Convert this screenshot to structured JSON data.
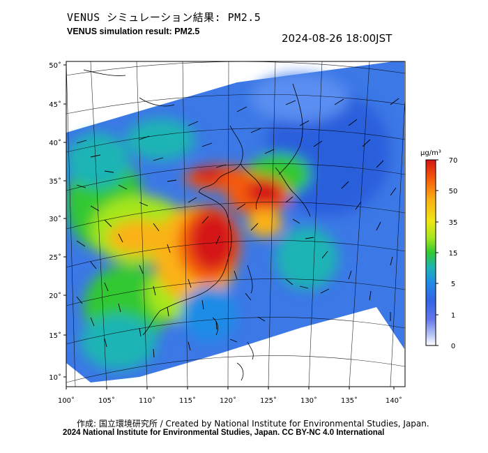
{
  "title_jp": "VENUS シミュレーション結果: PM2.5",
  "title_en": "VENUS simulation result: PM2.5",
  "timestamp": "2024-08-26 18:00JST",
  "lat_ticks": [
    "50˚",
    "45˚",
    "40˚",
    "35˚",
    "30˚",
    "25˚",
    "20˚",
    "15˚",
    "10˚"
  ],
  "lon_ticks": [
    "100˚",
    "105˚",
    "110˚",
    "115˚",
    "120˚",
    "125˚",
    "130˚",
    "135˚",
    "140˚"
  ],
  "colorbar": {
    "unit": "µg/m³",
    "labels": [
      "70",
      "50",
      "35",
      "15",
      "5",
      "1",
      "0"
    ],
    "colors": [
      "#d41414",
      "#f55a0a",
      "#fab214",
      "#f0e614",
      "#a5e61e",
      "#32c832",
      "#1eb4b4",
      "#1e8ce6",
      "#3264e6",
      "#6478eb",
      "#b4c3f5",
      "#ffffff"
    ]
  },
  "footer_line1": "作成: 国立環境研究所 / Created by National Institute for Environmental Studies, Japan.",
  "footer_line2": "2024 National Institute for Environmental Studies, Japan. CC BY-NC 4.0 International"
}
